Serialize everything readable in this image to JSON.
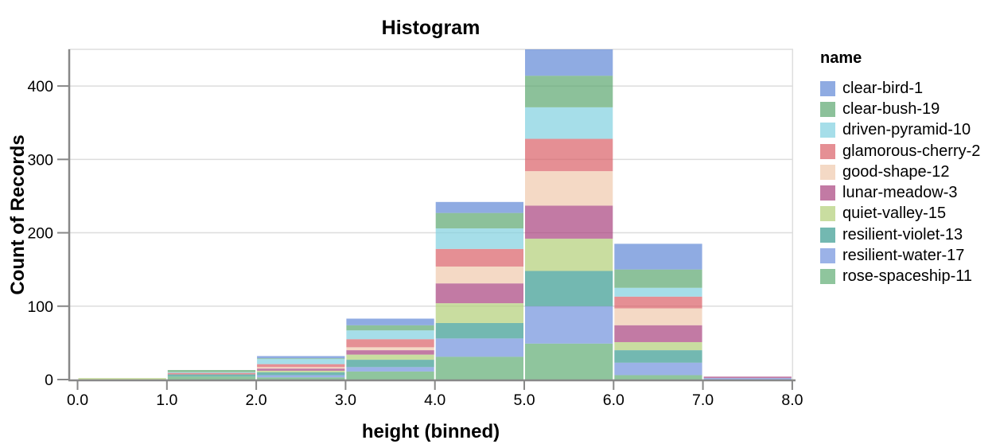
{
  "chart_data": {
    "type": "bar",
    "variant": "stacked-histogram",
    "title": "Histogram",
    "xlabel": "height (binned)",
    "ylabel": "Count of Records",
    "legend_title": "name",
    "legend_position": "right",
    "grid": true,
    "grid_color": "#dddddd",
    "axis_color": "#888888",
    "bar_opacity": 0.7,
    "bin_edges": [
      0,
      1,
      2,
      3,
      4,
      5,
      6,
      7,
      8
    ],
    "x_tick_labels": [
      "0.0",
      "1.0",
      "2.0",
      "3.0",
      "4.0",
      "5.0",
      "6.0",
      "7.0",
      "8.0"
    ],
    "y_ticks": [
      0,
      100,
      200,
      300,
      400
    ],
    "y_tick_labels": [
      "0",
      "100",
      "200",
      "300",
      "400"
    ],
    "xlim": [
      0,
      8
    ],
    "ylim": [
      0,
      450
    ],
    "bin_totals": [
      2,
      13,
      32,
      83,
      242,
      450,
      185,
      4
    ],
    "series": [
      {
        "name": "clear-bird-1",
        "color": "#5f87d6",
        "values": [
          0,
          0,
          3,
          9,
          15,
          36,
          35,
          0
        ]
      },
      {
        "name": "clear-bush-19",
        "color": "#5ba66f",
        "values": [
          0,
          3,
          1,
          7,
          21,
          43,
          25,
          0
        ]
      },
      {
        "name": "driven-pyramid-10",
        "color": "#80d0e0",
        "values": [
          0,
          1,
          7,
          12,
          28,
          43,
          12,
          0
        ]
      },
      {
        "name": "glamorous-cherry-2",
        "color": "#da6066",
        "values": [
          0,
          2,
          4,
          11,
          24,
          44,
          16,
          0
        ]
      },
      {
        "name": "good-shape-12",
        "color": "#efc9ac",
        "values": [
          0,
          0,
          2,
          4,
          23,
          47,
          23,
          0
        ]
      },
      {
        "name": "lunar-meadow-3",
        "color": "#a8427d",
        "values": [
          0,
          0,
          3,
          6,
          27,
          45,
          23,
          2
        ]
      },
      {
        "name": "quiet-valley-15",
        "color": "#b2ce77",
        "values": [
          2,
          0,
          2,
          7,
          27,
          44,
          11,
          0
        ]
      },
      {
        "name": "resilient-violet-13",
        "color": "#389a90",
        "values": [
          0,
          3,
          4,
          10,
          21,
          48,
          17,
          0
        ]
      },
      {
        "name": "resilient-water-17",
        "color": "#7092dd",
        "values": [
          0,
          0,
          3,
          6,
          25,
          51,
          17,
          2
        ]
      },
      {
        "name": "rose-spaceship-11",
        "color": "#60ac74",
        "values": [
          0,
          4,
          3,
          11,
          31,
          49,
          6,
          0
        ]
      }
    ],
    "stack_order_note": "first series renders at top of stack, last series at bottom"
  }
}
